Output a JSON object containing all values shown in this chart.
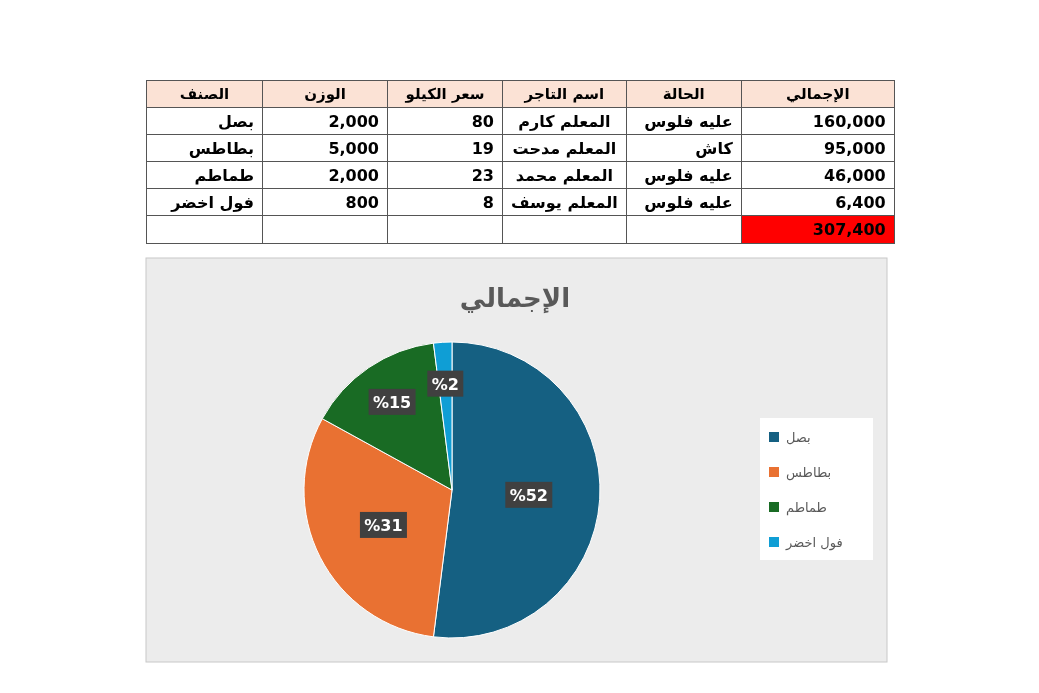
{
  "chart_data": {
    "type": "pie",
    "title": "الإجمالي",
    "categories": [
      "بصل",
      "بطاطس",
      "طماطم",
      "فول اخضر"
    ],
    "values": [
      52,
      31,
      15,
      2
    ],
    "colors": [
      "#156082",
      "#e97132",
      "#196b24",
      "#0f9ed5"
    ],
    "value_labels": [
      "%52",
      "%31",
      "%15",
      "%2"
    ],
    "legend": "right",
    "annotations": [
      "الصنف",
      "الوزن",
      "سعر الكيلو",
      "اسم التاجر",
      "الحالة",
      "الإجمالي",
      "بصل",
      "2,000",
      "80",
      "المعلم كارم",
      "عليه فلوس",
      "160,000",
      "بطاطس",
      "5,000",
      "19",
      "المعلم مدحت",
      "كاش",
      "95,000",
      "طماطم",
      "2,000",
      "23",
      "المعلم محمد",
      "عليه فلوس",
      "46,000",
      "فول اخضر",
      "800",
      "8",
      "المعلم يوسف",
      "عليه فلوس",
      "6,400",
      "307,400"
    ]
  }
}
